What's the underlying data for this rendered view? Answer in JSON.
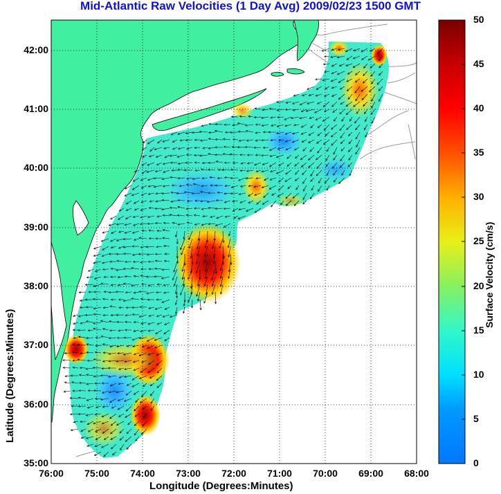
{
  "title": "Mid-Atlantic Raw Velocities (1 Day Avg) 2009/02/23 1500 GMT",
  "axes": {
    "xlabel": "Longitude (Degrees:Minutes)",
    "ylabel": "Latitude (Degrees:Minutes)",
    "x_ticks": [
      "76:00",
      "75:00",
      "74:00",
      "73:00",
      "72:00",
      "71:00",
      "70:00",
      "69:00",
      "68:00"
    ],
    "y_ticks": [
      "42:00",
      "41:00",
      "40:00",
      "39:00",
      "38:00",
      "37:00",
      "36:00",
      "35:00"
    ]
  },
  "colorbar": {
    "label": "Surface Velocity (cm/s)",
    "ticks": [
      "50",
      "45",
      "40",
      "35",
      "30",
      "25",
      "20",
      "15",
      "10",
      "5",
      "0"
    ],
    "min": 0,
    "max": 50
  },
  "colors": {
    "title": "#1010d0",
    "land": "#40f0a0",
    "vectors": "#000000"
  },
  "chart_data": {
    "type": "heatmap",
    "xlim": [
      -76,
      -68
    ],
    "ylim": [
      35,
      42.5
    ],
    "grid": true,
    "legend": "right",
    "features": [
      "surface-velocity-field",
      "velocity-vectors",
      "coastline",
      "bathymetry-contours"
    ]
  }
}
